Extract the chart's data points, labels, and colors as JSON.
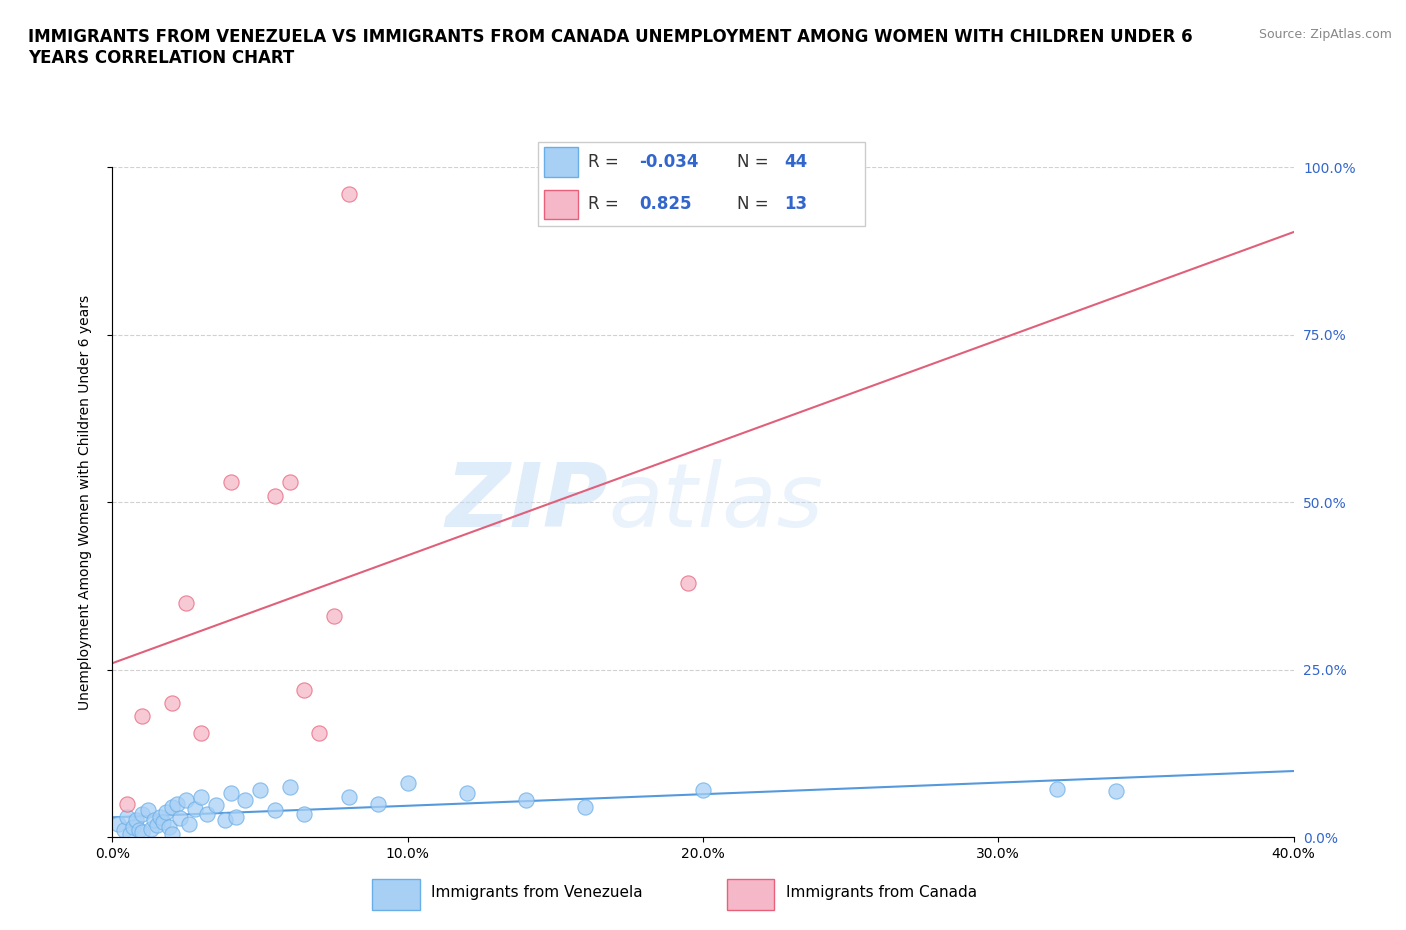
{
  "title": "IMMIGRANTS FROM VENEZUELA VS IMMIGRANTS FROM CANADA UNEMPLOYMENT AMONG WOMEN WITH CHILDREN UNDER 6\nYEARS CORRELATION CHART",
  "source": "Source: ZipAtlas.com",
  "ylabel": "Unemployment Among Women with Children Under 6 years",
  "xlim": [
    0.0,
    0.4
  ],
  "ylim": [
    0.0,
    1.0
  ],
  "xticks": [
    0.0,
    0.1,
    0.2,
    0.3,
    0.4
  ],
  "xtick_labels": [
    "0.0%",
    "10.0%",
    "20.0%",
    "30.0%",
    "40.0%"
  ],
  "yticks": [
    0.0,
    0.25,
    0.5,
    0.75,
    1.0
  ],
  "ytick_labels": [
    "0.0%",
    "25.0%",
    "50.0%",
    "75.0%",
    "100.0%"
  ],
  "watermark_zip": "ZIP",
  "watermark_atlas": "atlas",
  "R_venezuela": -0.034,
  "N_venezuela": 44,
  "R_canada": 0.825,
  "N_canada": 13,
  "color_venezuela": "#a8d0f5",
  "color_canada": "#f5b8c8",
  "edge_venezuela": "#6aaee8",
  "edge_canada": "#e8607a",
  "line_venezuela": "#5599dd",
  "line_canada": "#e0607a",
  "venezuela_x": [
    0.002,
    0.004,
    0.005,
    0.006,
    0.007,
    0.008,
    0.009,
    0.01,
    0.01,
    0.012,
    0.013,
    0.014,
    0.015,
    0.016,
    0.017,
    0.018,
    0.019,
    0.02,
    0.02,
    0.022,
    0.023,
    0.025,
    0.026,
    0.028,
    0.03,
    0.032,
    0.035,
    0.038,
    0.04,
    0.042,
    0.045,
    0.05,
    0.055,
    0.06,
    0.065,
    0.08,
    0.09,
    0.1,
    0.12,
    0.14,
    0.16,
    0.2,
    0.32,
    0.34
  ],
  "venezuela_y": [
    0.02,
    0.01,
    0.03,
    0.005,
    0.015,
    0.025,
    0.01,
    0.035,
    0.008,
    0.04,
    0.012,
    0.025,
    0.018,
    0.03,
    0.022,
    0.038,
    0.015,
    0.045,
    0.005,
    0.05,
    0.028,
    0.055,
    0.02,
    0.042,
    0.06,
    0.035,
    0.048,
    0.025,
    0.065,
    0.03,
    0.055,
    0.07,
    0.04,
    0.075,
    0.035,
    0.06,
    0.05,
    0.08,
    0.065,
    0.055,
    0.045,
    0.07,
    0.072,
    0.068
  ],
  "canada_x": [
    0.005,
    0.01,
    0.02,
    0.025,
    0.03,
    0.04,
    0.055,
    0.06,
    0.065,
    0.07,
    0.075,
    0.08,
    0.195
  ],
  "canada_y": [
    0.05,
    0.18,
    0.2,
    0.35,
    0.155,
    0.53,
    0.51,
    0.53,
    0.22,
    0.155,
    0.33,
    0.96,
    0.38
  ],
  "title_fontsize": 12,
  "axis_label_fontsize": 10,
  "tick_fontsize": 10,
  "legend_fontsize": 12,
  "source_fontsize": 9
}
